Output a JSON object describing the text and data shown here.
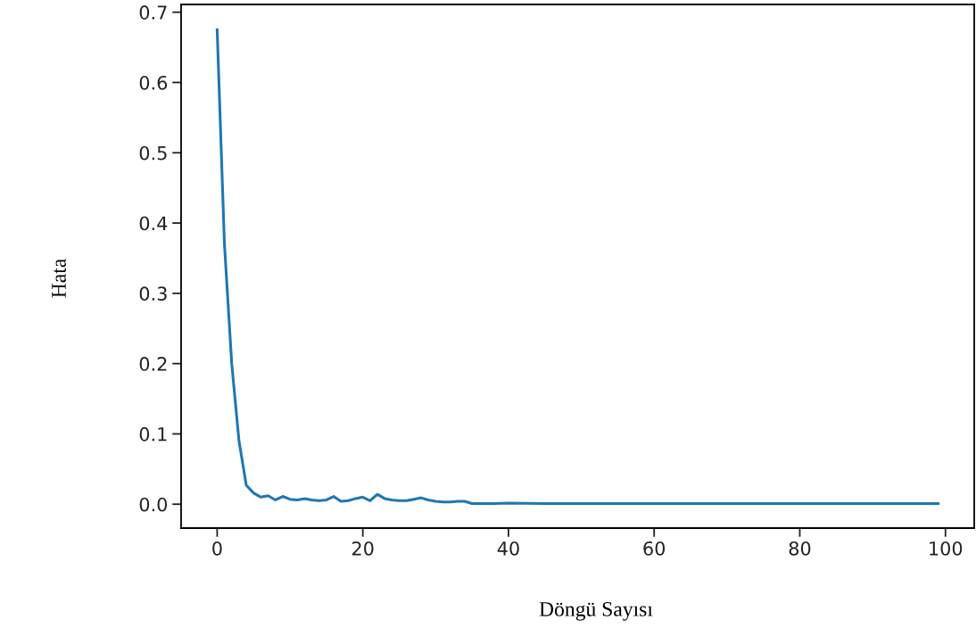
{
  "chart_data": {
    "type": "line",
    "xlabel": "Döngü Sayısı",
    "ylabel": "Hata",
    "x": [
      0,
      1,
      2,
      3,
      4,
      5,
      6,
      7,
      8,
      9,
      10,
      11,
      12,
      13,
      14,
      15,
      16,
      17,
      18,
      19,
      20,
      21,
      22,
      23,
      24,
      25,
      26,
      27,
      28,
      29,
      30,
      31,
      32,
      33,
      34,
      35,
      36,
      38,
      40,
      45,
      50,
      60,
      70,
      80,
      90,
      99
    ],
    "series": [
      {
        "color": "#1f77b4",
        "values": [
          0.675,
          0.37,
          0.2,
          0.09,
          0.027,
          0.016,
          0.01,
          0.012,
          0.006,
          0.011,
          0.007,
          0.006,
          0.008,
          0.006,
          0.005,
          0.006,
          0.011,
          0.004,
          0.005,
          0.008,
          0.01,
          0.005,
          0.014,
          0.008,
          0.006,
          0.005,
          0.005,
          0.007,
          0.009,
          0.006,
          0.004,
          0.003,
          0.003,
          0.004,
          0.004,
          0.001,
          0.001,
          0.001,
          0.0015,
          0.001,
          0.001,
          0.001,
          0.001,
          0.001,
          0.001,
          0.001
        ]
      }
    ],
    "xlim": [
      -4.95,
      103.95
    ],
    "ylim": [
      -0.034,
      0.711
    ],
    "xticks": [
      0,
      20,
      40,
      60,
      80,
      100
    ],
    "yticks": [
      {
        "value": 0,
        "label": "0.0"
      },
      0.1,
      0.2,
      0.3,
      0.4,
      0.5,
      0.6,
      0.7
    ],
    "grid": false,
    "legend": false
  }
}
